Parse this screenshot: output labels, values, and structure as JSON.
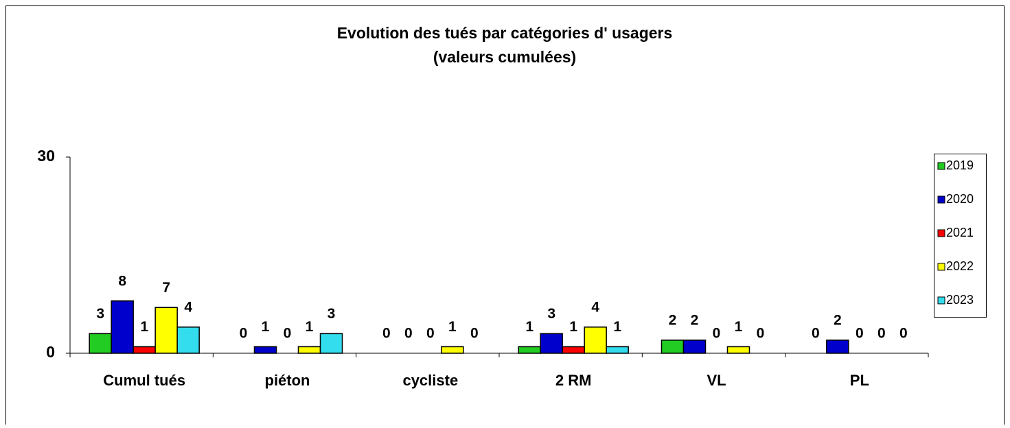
{
  "chart_data": {
    "type": "bar",
    "title": "Evolution des tués par catégories d' usagers",
    "subtitle": "(valeurs cumulées)",
    "categories": [
      "Cumul tués",
      "piéton",
      "cycliste",
      "2 RM",
      "VL",
      "PL"
    ],
    "series": [
      {
        "name": "2019",
        "color": "#22cc22",
        "values": [
          3,
          0,
          0,
          1,
          2,
          0
        ]
      },
      {
        "name": "2020",
        "color": "#0000cc",
        "values": [
          8,
          1,
          0,
          3,
          2,
          2
        ]
      },
      {
        "name": "2021",
        "color": "#ff0000",
        "values": [
          1,
          0,
          0,
          1,
          0,
          0
        ]
      },
      {
        "name": "2022",
        "color": "#ffff00",
        "values": [
          7,
          1,
          1,
          4,
          1,
          0
        ]
      },
      {
        "name": "2023",
        "color": "#33ddee",
        "values": [
          4,
          3,
          0,
          1,
          0,
          0
        ]
      }
    ],
    "ylim": [
      0,
      30
    ],
    "yticks": [
      0,
      30
    ],
    "grid": false,
    "legend": "right"
  }
}
